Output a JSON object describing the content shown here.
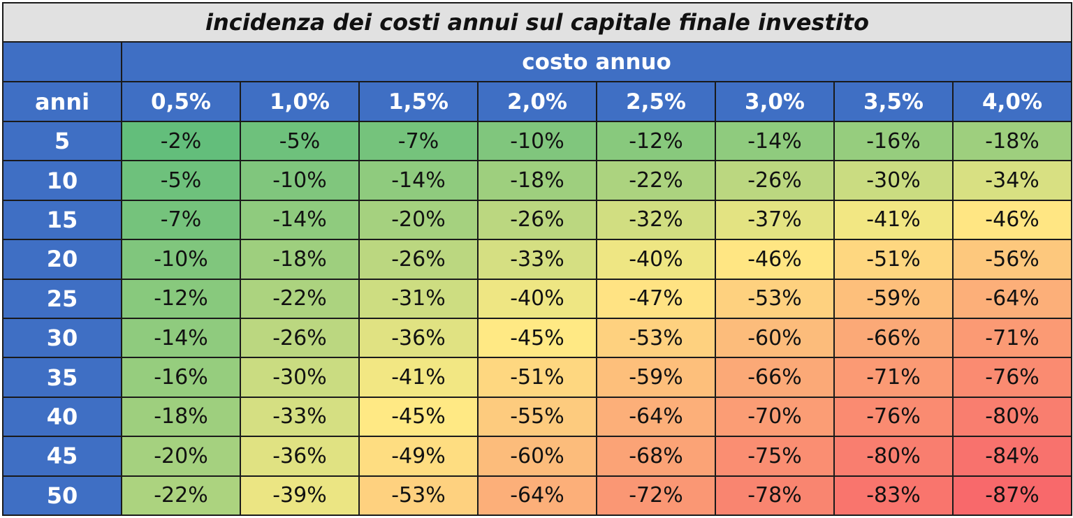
{
  "chart_data": {
    "type": "heatmap",
    "title": "incidenza dei costi annui sul capitale finale investito",
    "column_group_label": "costo annuo",
    "row_header_label": "anni",
    "columns": [
      "0,5%",
      "1,0%",
      "1,5%",
      "2,0%",
      "2,5%",
      "3,0%",
      "3,5%",
      "4,0%"
    ],
    "rows": [
      "5",
      "10",
      "15",
      "20",
      "25",
      "30",
      "35",
      "40",
      "45",
      "50"
    ],
    "values": [
      [
        -2,
        -5,
        -7,
        -10,
        -12,
        -14,
        -16,
        -18
      ],
      [
        -5,
        -10,
        -14,
        -18,
        -22,
        -26,
        -30,
        -34
      ],
      [
        -7,
        -14,
        -20,
        -26,
        -32,
        -37,
        -41,
        -46
      ],
      [
        -10,
        -18,
        -26,
        -33,
        -40,
        -46,
        -51,
        -56
      ],
      [
        -12,
        -22,
        -31,
        -40,
        -47,
        -53,
        -59,
        -64
      ],
      [
        -14,
        -26,
        -36,
        -45,
        -53,
        -60,
        -66,
        -71
      ],
      [
        -16,
        -30,
        -41,
        -51,
        -59,
        -66,
        -71,
        -76
      ],
      [
        -18,
        -33,
        -45,
        -55,
        -64,
        -70,
        -76,
        -80
      ],
      [
        -20,
        -36,
        -49,
        -60,
        -68,
        -75,
        -80,
        -84
      ],
      [
        -22,
        -39,
        -53,
        -64,
        -72,
        -78,
        -83,
        -87
      ]
    ],
    "value_suffix": "%",
    "color_scale": {
      "min_value": -87,
      "max_value": -2,
      "colors": [
        "#f8696b",
        "#ffeb84",
        "#63be7b"
      ]
    }
  },
  "colors": {
    "header_bg": "#3f6fc4",
    "title_bg": "#e1e1e1"
  }
}
